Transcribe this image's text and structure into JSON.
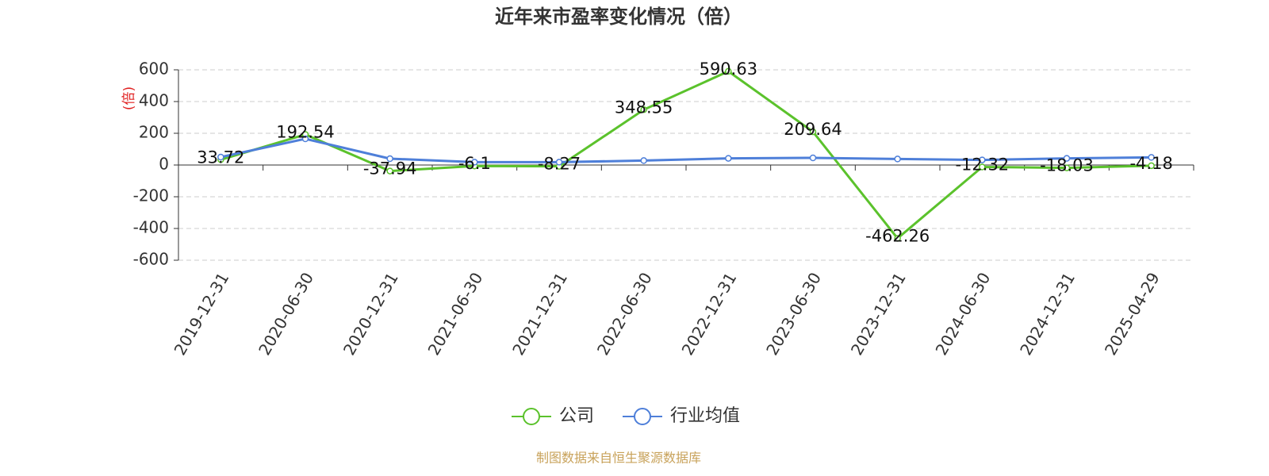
{
  "chart_data": {
    "type": "line",
    "title": "近年来市盈率变化情况（倍）",
    "y_label": "(倍)",
    "source": "制图数据来自恒生聚源数据库",
    "categories": [
      "2019-12-31",
      "2020-06-30",
      "2020-12-31",
      "2021-06-30",
      "2021-12-31",
      "2022-06-30",
      "2022-12-31",
      "2023-06-30",
      "2023-12-31",
      "2024-06-30",
      "2024-12-31",
      "2025-04-29"
    ],
    "series": [
      {
        "name": "公司",
        "color": "#5bc22c",
        "values": [
          33.72,
          192.54,
          -37.94,
          -6.1,
          -8.27,
          348.55,
          590.63,
          209.64,
          -462.26,
          -12.32,
          -18.03,
          -4.18
        ],
        "show_labels": true
      },
      {
        "name": "行业均值",
        "color": "#4e7fd9",
        "values": [
          50,
          165,
          40,
          18,
          18,
          28,
          42,
          45,
          38,
          32,
          42,
          48
        ],
        "show_labels": false
      }
    ],
    "ylim": [
      -600,
      600
    ],
    "yticks": [
      -600,
      -400,
      -200,
      0,
      200,
      400,
      600
    ],
    "grid": true
  }
}
